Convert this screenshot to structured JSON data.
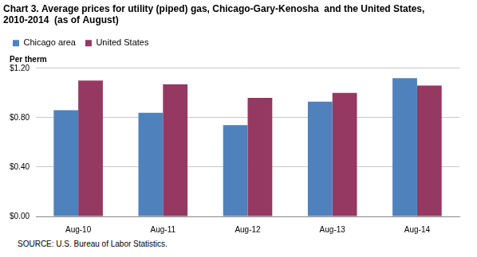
{
  "chart_data": {
    "type": "bar",
    "title": [
      "Chart 3. Average prices for utility (piped) gas, Chicago-Gary-Kenosha  and the United States,",
      "2010-2014  (as of August)"
    ],
    "ylabel": "Per therm",
    "annotations": [
      "SOURCE:  U.S. Bureau of Labor Statistics."
    ],
    "categories": [
      "Aug-10",
      "Aug-11",
      "Aug-12",
      "Aug-13",
      "Aug-14"
    ],
    "series": [
      {
        "name": "Chicago area",
        "color": "#4f81bd",
        "values": [
          0.86,
          0.84,
          0.74,
          0.93,
          1.12
        ]
      },
      {
        "name": "United States",
        "color": "#953862",
        "values": [
          1.1,
          1.07,
          0.96,
          1.0,
          1.06
        ]
      }
    ],
    "ylim": [
      0,
      1.2
    ],
    "yticks": [
      {
        "value": 0,
        "label": "$0.00"
      },
      {
        "value": 0.4,
        "label": "$0.40"
      },
      {
        "value": 0.8,
        "label": "$0.80"
      },
      {
        "value": 1.2,
        "label": "$1.20"
      }
    ],
    "grid": true,
    "legend": "top-left"
  }
}
